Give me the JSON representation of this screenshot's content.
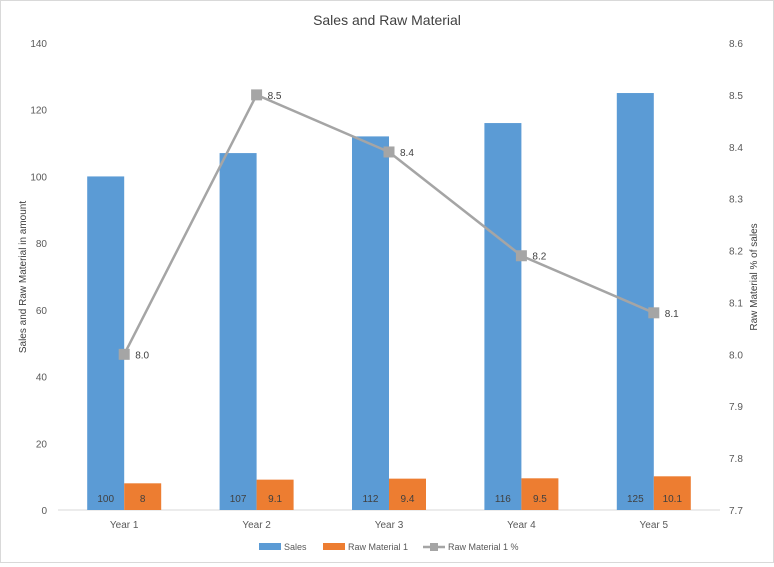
{
  "chart_data": {
    "type": "bar",
    "title": "Sales and Raw Material",
    "ylabel": "Sales and Raw Material in amount",
    "y2label": "Raw Material % of sales",
    "categories": [
      "Year 1",
      "Year 2",
      "Year 3",
      "Year 4",
      "Year 5"
    ],
    "ylim": [
      0,
      140
    ],
    "yticks": [
      "0",
      "20",
      "40",
      "60",
      "80",
      "100",
      "120",
      "140"
    ],
    "y2lim": [
      7.7,
      8.6
    ],
    "y2ticks": [
      "7.7",
      "7.8",
      "7.9",
      "8.0",
      "8.1",
      "8.2",
      "8.3",
      "8.4",
      "8.5",
      "8.6"
    ],
    "grid": false,
    "legend_position": "bottom",
    "series": [
      {
        "name": "Sales",
        "kind": "bar",
        "axis": "left",
        "color": "#5b9bd5",
        "values": [
          100,
          107,
          112,
          116,
          125
        ],
        "labels": [
          "100",
          "107",
          "112",
          "116",
          "125"
        ]
      },
      {
        "name": "Raw Material 1",
        "kind": "bar",
        "axis": "left",
        "color": "#ed7d31",
        "values": [
          8,
          9.1,
          9.4,
          9.5,
          10.1
        ],
        "labels": [
          "8",
          "9.1",
          "9.4",
          "9.5",
          "10.1"
        ]
      },
      {
        "name": "Raw Material 1 %",
        "kind": "line",
        "axis": "right",
        "color": "#a5a5a5",
        "values": [
          8.0,
          8.5,
          8.39,
          8.19,
          8.08
        ],
        "labels": [
          "8.0",
          "8.5",
          "8.4",
          "8.2",
          "8.1"
        ]
      }
    ]
  }
}
